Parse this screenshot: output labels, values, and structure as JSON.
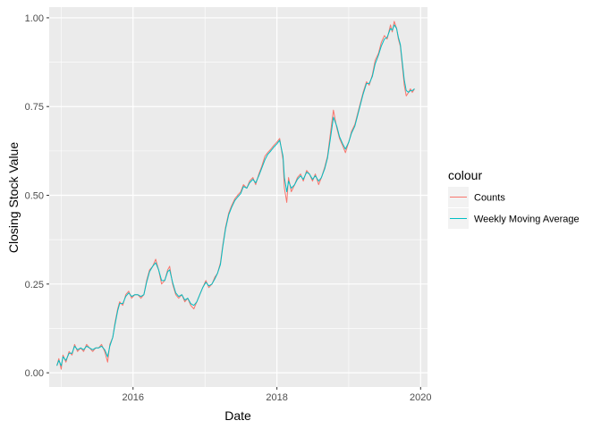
{
  "chart_data": {
    "type": "line",
    "xlabel": "Date",
    "ylabel": "Closing Stock Value",
    "xlim": [
      "2014-11-01",
      "2020-02-05"
    ],
    "ylim": [
      -0.04,
      1.03
    ],
    "x_ticks": [
      {
        "value": "2016-01-01",
        "label": "2016"
      },
      {
        "value": "2018-01-01",
        "label": "2018"
      },
      {
        "value": "2020-01-01",
        "label": "2020"
      }
    ],
    "y_ticks": [
      {
        "value": 0.0,
        "label": "0.00"
      },
      {
        "value": 0.25,
        "label": "0.25"
      },
      {
        "value": 0.5,
        "label": "0.50"
      },
      {
        "value": 0.75,
        "label": "0.75"
      },
      {
        "value": 1.0,
        "label": "1.00"
      }
    ],
    "grid": true,
    "legend": {
      "title": "colour",
      "position": "right"
    },
    "series": [
      {
        "name": "Counts",
        "color": "#F8766D",
        "points": [
          [
            "2014-12-10",
            0.02
          ],
          [
            "2014-12-20",
            0.04
          ],
          [
            "2015-01-01",
            0.01
          ],
          [
            "2015-01-10",
            0.05
          ],
          [
            "2015-01-25",
            0.03
          ],
          [
            "2015-02-10",
            0.06
          ],
          [
            "2015-02-25",
            0.05
          ],
          [
            "2015-03-10",
            0.08
          ],
          [
            "2015-03-25",
            0.06
          ],
          [
            "2015-04-10",
            0.07
          ],
          [
            "2015-04-25",
            0.06
          ],
          [
            "2015-05-10",
            0.08
          ],
          [
            "2015-05-25",
            0.07
          ],
          [
            "2015-06-10",
            0.06
          ],
          [
            "2015-06-25",
            0.07
          ],
          [
            "2015-07-10",
            0.07
          ],
          [
            "2015-07-25",
            0.08
          ],
          [
            "2015-08-10",
            0.06
          ],
          [
            "2015-08-25",
            0.03
          ],
          [
            "2015-09-05",
            0.08
          ],
          [
            "2015-09-20",
            0.1
          ],
          [
            "2015-10-01",
            0.14
          ],
          [
            "2015-10-15",
            0.18
          ],
          [
            "2015-10-25",
            0.2
          ],
          [
            "2015-11-10",
            0.19
          ],
          [
            "2015-11-25",
            0.22
          ],
          [
            "2015-12-10",
            0.23
          ],
          [
            "2015-12-25",
            0.21
          ],
          [
            "2016-01-10",
            0.22
          ],
          [
            "2016-01-25",
            0.22
          ],
          [
            "2016-02-10",
            0.21
          ],
          [
            "2016-02-25",
            0.22
          ],
          [
            "2016-03-10",
            0.26
          ],
          [
            "2016-03-25",
            0.29
          ],
          [
            "2016-04-10",
            0.3
          ],
          [
            "2016-04-25",
            0.32
          ],
          [
            "2016-05-10",
            0.29
          ],
          [
            "2016-05-25",
            0.25
          ],
          [
            "2016-06-10",
            0.26
          ],
          [
            "2016-06-25",
            0.29
          ],
          [
            "2016-07-05",
            0.3
          ],
          [
            "2016-07-20",
            0.25
          ],
          [
            "2016-08-05",
            0.22
          ],
          [
            "2016-08-20",
            0.21
          ],
          [
            "2016-09-05",
            0.22
          ],
          [
            "2016-09-20",
            0.2
          ],
          [
            "2016-10-05",
            0.21
          ],
          [
            "2016-10-20",
            0.19
          ],
          [
            "2016-11-05",
            0.18
          ],
          [
            "2016-11-20",
            0.2
          ],
          [
            "2016-12-05",
            0.22
          ],
          [
            "2016-12-20",
            0.24
          ],
          [
            "2017-01-05",
            0.26
          ],
          [
            "2017-01-20",
            0.24
          ],
          [
            "2017-02-05",
            0.25
          ],
          [
            "2017-02-20",
            0.27
          ],
          [
            "2017-03-05",
            0.28
          ],
          [
            "2017-03-20",
            0.31
          ],
          [
            "2017-04-01",
            0.36
          ],
          [
            "2017-04-15",
            0.41
          ],
          [
            "2017-05-01",
            0.45
          ],
          [
            "2017-05-15",
            0.47
          ],
          [
            "2017-06-01",
            0.49
          ],
          [
            "2017-06-15",
            0.5
          ],
          [
            "2017-07-01",
            0.51
          ],
          [
            "2017-07-15",
            0.53
          ],
          [
            "2017-08-01",
            0.52
          ],
          [
            "2017-08-15",
            0.54
          ],
          [
            "2017-09-01",
            0.55
          ],
          [
            "2017-09-15",
            0.53
          ],
          [
            "2017-10-01",
            0.56
          ],
          [
            "2017-10-15",
            0.58
          ],
          [
            "2017-11-01",
            0.61
          ],
          [
            "2017-11-15",
            0.62
          ],
          [
            "2017-12-01",
            0.63
          ],
          [
            "2017-12-15",
            0.64
          ],
          [
            "2018-01-01",
            0.65
          ],
          [
            "2018-01-15",
            0.66
          ],
          [
            "2018-02-01",
            0.6
          ],
          [
            "2018-02-08",
            0.52
          ],
          [
            "2018-02-20",
            0.48
          ],
          [
            "2018-03-01",
            0.55
          ],
          [
            "2018-03-15",
            0.51
          ],
          [
            "2018-04-01",
            0.53
          ],
          [
            "2018-04-15",
            0.55
          ],
          [
            "2018-05-01",
            0.56
          ],
          [
            "2018-05-15",
            0.54
          ],
          [
            "2018-06-01",
            0.57
          ],
          [
            "2018-06-15",
            0.56
          ],
          [
            "2018-07-01",
            0.54
          ],
          [
            "2018-07-15",
            0.56
          ],
          [
            "2018-08-01",
            0.53
          ],
          [
            "2018-08-15",
            0.55
          ],
          [
            "2018-09-01",
            0.58
          ],
          [
            "2018-09-15",
            0.61
          ],
          [
            "2018-10-01",
            0.68
          ],
          [
            "2018-10-15",
            0.74
          ],
          [
            "2018-11-01",
            0.69
          ],
          [
            "2018-11-15",
            0.66
          ],
          [
            "2018-12-01",
            0.64
          ],
          [
            "2018-12-15",
            0.62
          ],
          [
            "2019-01-01",
            0.65
          ],
          [
            "2019-01-15",
            0.68
          ],
          [
            "2019-02-01",
            0.7
          ],
          [
            "2019-02-15",
            0.73
          ],
          [
            "2019-03-01",
            0.76
          ],
          [
            "2019-03-15",
            0.79
          ],
          [
            "2019-04-01",
            0.82
          ],
          [
            "2019-04-15",
            0.81
          ],
          [
            "2019-05-01",
            0.84
          ],
          [
            "2019-05-15",
            0.88
          ],
          [
            "2019-06-01",
            0.9
          ],
          [
            "2019-06-15",
            0.93
          ],
          [
            "2019-07-01",
            0.95
          ],
          [
            "2019-07-15",
            0.94
          ],
          [
            "2019-08-01",
            0.98
          ],
          [
            "2019-08-10",
            0.96
          ],
          [
            "2019-08-20",
            0.99
          ],
          [
            "2019-09-01",
            0.97
          ],
          [
            "2019-09-10",
            0.94
          ],
          [
            "2019-09-20",
            0.92
          ],
          [
            "2019-10-01",
            0.86
          ],
          [
            "2019-10-10",
            0.81
          ],
          [
            "2019-10-20",
            0.78
          ],
          [
            "2019-11-01",
            0.79
          ],
          [
            "2019-11-10",
            0.8
          ],
          [
            "2019-11-20",
            0.79
          ],
          [
            "2019-12-01",
            0.8
          ]
        ]
      },
      {
        "name": "Weekly Moving Average",
        "color": "#00BFC4",
        "points": [
          [
            "2014-12-10",
            0.02
          ],
          [
            "2014-12-20",
            0.035
          ],
          [
            "2015-01-01",
            0.02
          ],
          [
            "2015-01-10",
            0.045
          ],
          [
            "2015-01-25",
            0.035
          ],
          [
            "2015-02-10",
            0.055
          ],
          [
            "2015-02-25",
            0.055
          ],
          [
            "2015-03-10",
            0.075
          ],
          [
            "2015-03-25",
            0.065
          ],
          [
            "2015-04-10",
            0.07
          ],
          [
            "2015-04-25",
            0.065
          ],
          [
            "2015-05-10",
            0.075
          ],
          [
            "2015-05-25",
            0.07
          ],
          [
            "2015-06-10",
            0.065
          ],
          [
            "2015-06-25",
            0.07
          ],
          [
            "2015-07-10",
            0.07
          ],
          [
            "2015-07-25",
            0.075
          ],
          [
            "2015-08-10",
            0.065
          ],
          [
            "2015-08-25",
            0.045
          ],
          [
            "2015-09-05",
            0.075
          ],
          [
            "2015-09-20",
            0.1
          ],
          [
            "2015-10-01",
            0.135
          ],
          [
            "2015-10-15",
            0.175
          ],
          [
            "2015-10-25",
            0.195
          ],
          [
            "2015-11-10",
            0.195
          ],
          [
            "2015-11-25",
            0.215
          ],
          [
            "2015-12-10",
            0.225
          ],
          [
            "2015-12-25",
            0.215
          ],
          [
            "2016-01-10",
            0.22
          ],
          [
            "2016-01-25",
            0.22
          ],
          [
            "2016-02-10",
            0.215
          ],
          [
            "2016-02-25",
            0.22
          ],
          [
            "2016-03-10",
            0.255
          ],
          [
            "2016-03-25",
            0.285
          ],
          [
            "2016-04-10",
            0.3
          ],
          [
            "2016-04-25",
            0.31
          ],
          [
            "2016-05-10",
            0.29
          ],
          [
            "2016-05-25",
            0.26
          ],
          [
            "2016-06-10",
            0.26
          ],
          [
            "2016-06-25",
            0.285
          ],
          [
            "2016-07-05",
            0.29
          ],
          [
            "2016-07-20",
            0.255
          ],
          [
            "2016-08-05",
            0.225
          ],
          [
            "2016-08-20",
            0.215
          ],
          [
            "2016-09-05",
            0.22
          ],
          [
            "2016-09-20",
            0.205
          ],
          [
            "2016-10-05",
            0.21
          ],
          [
            "2016-10-20",
            0.195
          ],
          [
            "2016-11-05",
            0.19
          ],
          [
            "2016-11-20",
            0.2
          ],
          [
            "2016-12-05",
            0.22
          ],
          [
            "2016-12-20",
            0.24
          ],
          [
            "2017-01-05",
            0.255
          ],
          [
            "2017-01-20",
            0.245
          ],
          [
            "2017-02-05",
            0.25
          ],
          [
            "2017-02-20",
            0.265
          ],
          [
            "2017-03-05",
            0.28
          ],
          [
            "2017-03-20",
            0.305
          ],
          [
            "2017-04-01",
            0.355
          ],
          [
            "2017-04-15",
            0.405
          ],
          [
            "2017-05-01",
            0.445
          ],
          [
            "2017-05-15",
            0.465
          ],
          [
            "2017-06-01",
            0.485
          ],
          [
            "2017-06-15",
            0.495
          ],
          [
            "2017-07-01",
            0.505
          ],
          [
            "2017-07-15",
            0.525
          ],
          [
            "2017-08-01",
            0.52
          ],
          [
            "2017-08-15",
            0.535
          ],
          [
            "2017-09-01",
            0.545
          ],
          [
            "2017-09-15",
            0.535
          ],
          [
            "2017-10-01",
            0.555
          ],
          [
            "2017-10-15",
            0.575
          ],
          [
            "2017-11-01",
            0.6
          ],
          [
            "2017-11-15",
            0.615
          ],
          [
            "2017-12-01",
            0.625
          ],
          [
            "2017-12-15",
            0.635
          ],
          [
            "2018-01-01",
            0.645
          ],
          [
            "2018-01-15",
            0.655
          ],
          [
            "2018-02-01",
            0.61
          ],
          [
            "2018-02-08",
            0.55
          ],
          [
            "2018-02-20",
            0.51
          ],
          [
            "2018-03-01",
            0.54
          ],
          [
            "2018-03-15",
            0.52
          ],
          [
            "2018-04-01",
            0.53
          ],
          [
            "2018-04-15",
            0.545
          ],
          [
            "2018-05-01",
            0.555
          ],
          [
            "2018-05-15",
            0.545
          ],
          [
            "2018-06-01",
            0.565
          ],
          [
            "2018-06-15",
            0.56
          ],
          [
            "2018-07-01",
            0.545
          ],
          [
            "2018-07-15",
            0.555
          ],
          [
            "2018-08-01",
            0.54
          ],
          [
            "2018-08-15",
            0.55
          ],
          [
            "2018-09-01",
            0.575
          ],
          [
            "2018-09-15",
            0.605
          ],
          [
            "2018-10-01",
            0.665
          ],
          [
            "2018-10-15",
            0.72
          ],
          [
            "2018-11-01",
            0.695
          ],
          [
            "2018-11-15",
            0.665
          ],
          [
            "2018-12-01",
            0.645
          ],
          [
            "2018-12-15",
            0.63
          ],
          [
            "2019-01-01",
            0.65
          ],
          [
            "2019-01-15",
            0.675
          ],
          [
            "2019-02-01",
            0.695
          ],
          [
            "2019-02-15",
            0.725
          ],
          [
            "2019-03-01",
            0.755
          ],
          [
            "2019-03-15",
            0.785
          ],
          [
            "2019-04-01",
            0.815
          ],
          [
            "2019-04-15",
            0.815
          ],
          [
            "2019-05-01",
            0.835
          ],
          [
            "2019-05-15",
            0.87
          ],
          [
            "2019-06-01",
            0.895
          ],
          [
            "2019-06-15",
            0.92
          ],
          [
            "2019-07-01",
            0.94
          ],
          [
            "2019-07-15",
            0.945
          ],
          [
            "2019-08-01",
            0.97
          ],
          [
            "2019-08-10",
            0.965
          ],
          [
            "2019-08-20",
            0.98
          ],
          [
            "2019-09-01",
            0.97
          ],
          [
            "2019-09-10",
            0.945
          ],
          [
            "2019-09-20",
            0.925
          ],
          [
            "2019-10-01",
            0.87
          ],
          [
            "2019-10-10",
            0.825
          ],
          [
            "2019-10-20",
            0.795
          ],
          [
            "2019-11-01",
            0.79
          ],
          [
            "2019-11-10",
            0.795
          ],
          [
            "2019-11-20",
            0.795
          ],
          [
            "2019-12-01",
            0.8
          ]
        ]
      }
    ]
  }
}
